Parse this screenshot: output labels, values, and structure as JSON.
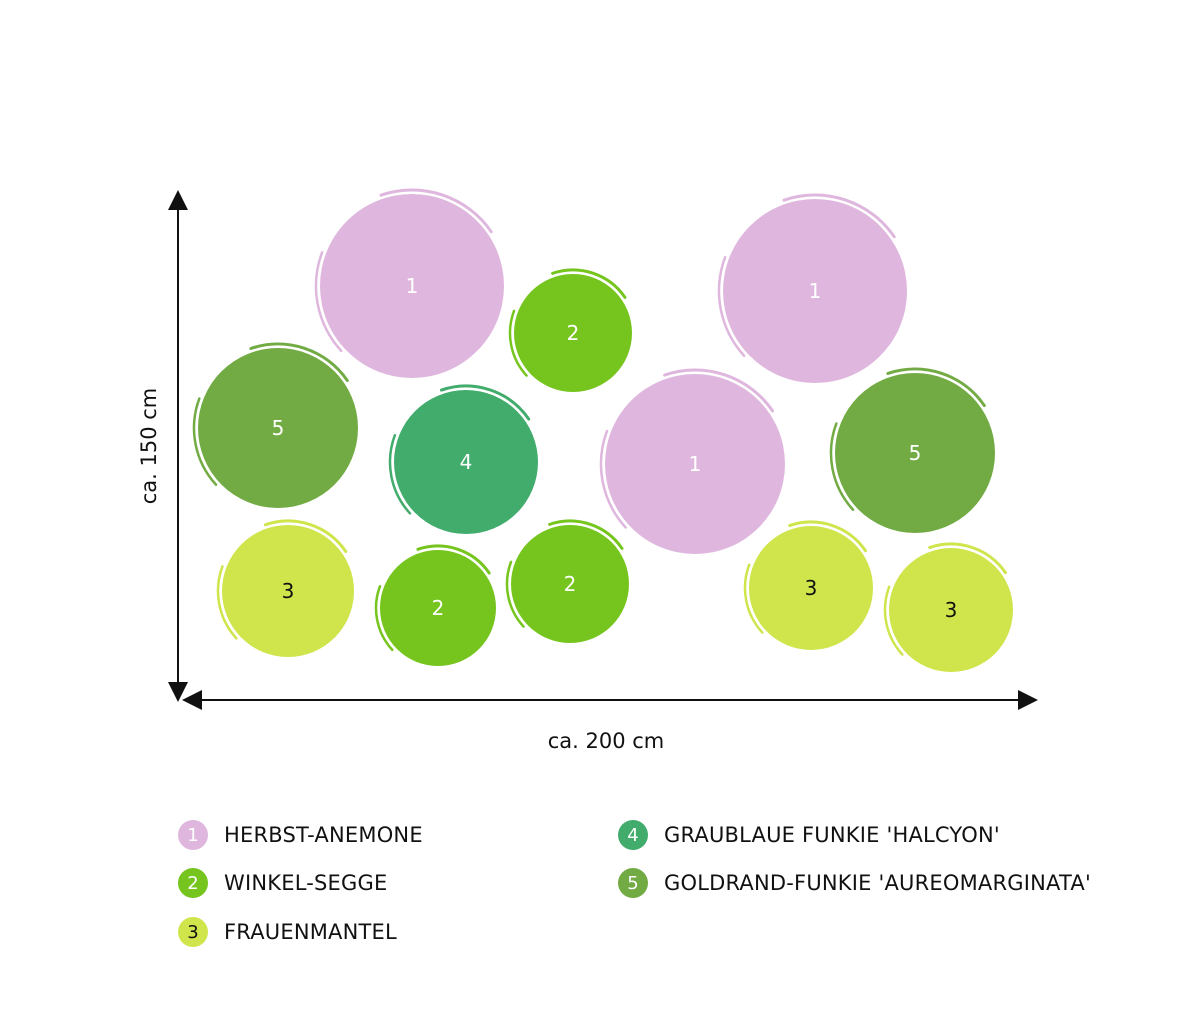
{
  "dimensions": {
    "height_label": "ca. 150 cm",
    "width_label": "ca. 200 cm"
  },
  "plants": [
    {
      "number": "1",
      "name": "HERBST-ANEMONE",
      "color": "#dfb7de",
      "text_color": "#ffffff"
    },
    {
      "number": "2",
      "name": "WINKEL-SEGGE",
      "color": "#76c51e",
      "text_color": "#ffffff"
    },
    {
      "number": "3",
      "name": "FRAUENMANTEL",
      "color": "#cfe54b",
      "text_color": "#111111"
    },
    {
      "number": "4",
      "name": "GRAUBLAUE FUNKIE 'HALCYON'",
      "color": "#41ac6c",
      "text_color": "#ffffff"
    },
    {
      "number": "5",
      "name": "GOLDRAND-FUNKIE 'AUREOMARGINATA'",
      "color": "#72ab43",
      "text_color": "#ffffff"
    }
  ],
  "layout": [
    {
      "plant": "1"
    },
    {
      "plant": "2"
    },
    {
      "plant": "1"
    },
    {
      "plant": "5"
    },
    {
      "plant": "4"
    },
    {
      "plant": "1"
    },
    {
      "plant": "5"
    },
    {
      "plant": "3"
    },
    {
      "plant": "2"
    },
    {
      "plant": "2"
    },
    {
      "plant": "3"
    },
    {
      "plant": "3"
    }
  ]
}
